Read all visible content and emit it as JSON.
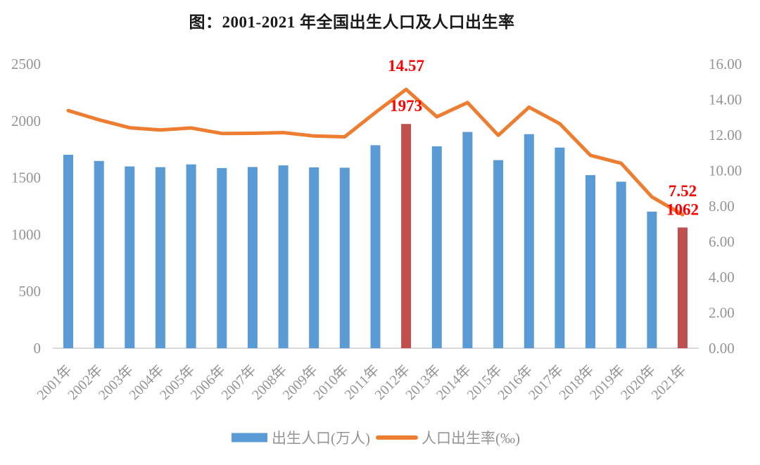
{
  "title": "图：2001-2021 年全国出生人口及人口出生率",
  "colors": {
    "bar": "#5B9BD5",
    "bar_highlight": "#C0504D",
    "line": "#ED7D31",
    "annotation": "#FF0000",
    "axis_text": "#949494",
    "title_text": "#1A1A1A",
    "baseline": "#D9D9D9",
    "background": "#FFFFFF"
  },
  "legend": {
    "position": "bottom",
    "items": [
      {
        "label": "出生人口(万人)",
        "marker": "bar-swatch",
        "color": "#5B9BD5"
      },
      {
        "label": "人口出生率(‰)",
        "marker": "line-swatch",
        "color": "#ED7D31"
      }
    ]
  },
  "chart_data": {
    "type": "combo-bar-line",
    "title": "图：2001-2021 年全国出生人口及人口出生率",
    "grid": false,
    "legend_position": "bottom",
    "categories": [
      "2001年",
      "2002年",
      "2003年",
      "2004年",
      "2005年",
      "2006年",
      "2007年",
      "2008年",
      "2009年",
      "2010年",
      "2011年",
      "2012年",
      "2013年",
      "2014年",
      "2015年",
      "2016年",
      "2017年",
      "2018年",
      "2019年",
      "2020年",
      "2021年"
    ],
    "left_axis": {
      "min": 0,
      "max": 2500,
      "tick_step": 500,
      "tick_labels": [
        "0",
        "500",
        "1000",
        "1500",
        "2000",
        "2500"
      ]
    },
    "right_axis": {
      "min": 0,
      "max": 16,
      "tick_step": 2,
      "tick_labels": [
        "0.00",
        "2.00",
        "4.00",
        "6.00",
        "8.00",
        "10.00",
        "12.00",
        "14.00",
        "16.00"
      ]
    },
    "series": [
      {
        "name": "出生人口(万人)",
        "type": "bar",
        "axis": "left",
        "color": "#5B9BD5",
        "highlight_color": "#C0504D",
        "highlight_indices": [
          11,
          20
        ],
        "values": [
          1702,
          1647,
          1599,
          1593,
          1617,
          1585,
          1594,
          1608,
          1591,
          1588,
          1786,
          1973,
          1776,
          1902,
          1655,
          1883,
          1765,
          1523,
          1465,
          1202,
          1062
        ]
      },
      {
        "name": "人口出生率(‰)",
        "type": "line",
        "axis": "right",
        "color": "#ED7D31",
        "values": [
          13.38,
          12.86,
          12.41,
          12.29,
          12.4,
          12.09,
          12.1,
          12.14,
          11.95,
          11.9,
          13.27,
          14.57,
          13.03,
          13.83,
          11.99,
          13.57,
          12.64,
          10.86,
          10.41,
          8.52,
          7.52
        ]
      }
    ],
    "annotations": [
      {
        "text": "14.57",
        "category": "2012年",
        "series": "人口出生率(‰)",
        "color": "#FF0000"
      },
      {
        "text": "1973",
        "category": "2012年",
        "series": "出生人口(万人)",
        "color": "#FF0000"
      },
      {
        "text": "7.52",
        "category": "2021年",
        "series": "人口出生率(‰)",
        "color": "#FF0000"
      },
      {
        "text": "1062",
        "category": "2021年",
        "series": "出生人口(万人)",
        "color": "#FF0000"
      }
    ]
  }
}
